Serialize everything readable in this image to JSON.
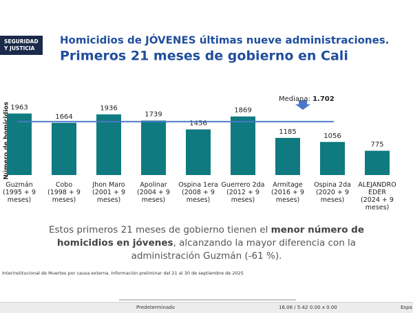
{
  "logo": [
    "SEGURIDAD",
    "Y JUSTICIA"
  ],
  "chart_data": {
    "type": "bar",
    "title": "Homicidios de JÓVENES últimas nueve administraciones.",
    "subtitle": "Primeros 21 meses de gobierno en Cali",
    "y_label": "Número de homicidios",
    "categories": [
      [
        "Guzmán",
        "(1995 + 9",
        "meses)"
      ],
      [
        "Cobo",
        "(1998 + 9",
        "meses)"
      ],
      [
        "Jhon Maro",
        "(2001 + 9",
        "meses)"
      ],
      [
        "Apolinar",
        "(2004 + 9",
        "meses)"
      ],
      [
        "Ospina  1era",
        "(2008 + 9",
        "meses)"
      ],
      [
        "Guerrero 2da",
        "(2012 + 9",
        "meses)"
      ],
      [
        "Armitage",
        "(2016 + 9",
        "meses)"
      ],
      [
        "Ospina 2da",
        "(2020 + 9",
        "meses)"
      ],
      [
        "ALEJANDRO",
        "EDER",
        "(2024 + 9",
        "meses)"
      ]
    ],
    "values": [
      1963,
      1664,
      1936,
      1739,
      1456,
      1869,
      1185,
      1056,
      775
    ],
    "color": "#0f7b80",
    "ylim": [
      0,
      2300
    ],
    "median_label": "Mediana:",
    "median": {
      "value": 1702,
      "label": "1.702"
    },
    "median_color": "#4a78c8"
  },
  "summary": [
    "Estos primeros 21 meses de gobierno tienen el ",
    "menor número de homicidios en jóvenes",
    ", alcanzando la mayor diferencia con la administración Guzmán (-61 %)."
  ],
  "footnote": "Interinstitucional de Muertes por causa externa. Información preliminar del 21 al 30 de septiembre de 2025",
  "status_bar": [
    "Predeterminado",
    "16.06 / 5.42",
    "0.00 x 0.00",
    "Espa"
  ]
}
